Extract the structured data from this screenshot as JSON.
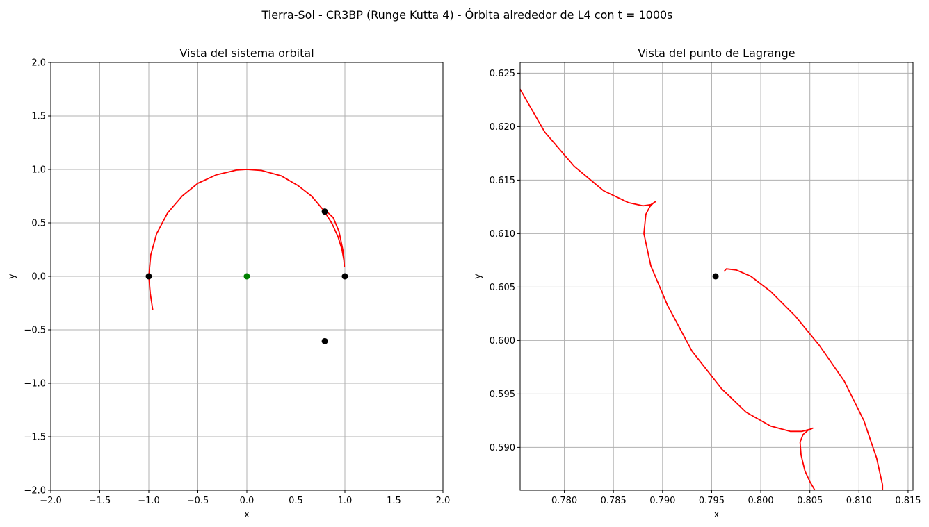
{
  "figure": {
    "suptitle": "Tierra-Sol - CR3BP (Runge Kutta 4) - Órbita alrededor de L4 con t = 1000s"
  },
  "colors": {
    "orbit": "#ff0000",
    "body": "#000000",
    "sun": "#008000",
    "grid": "#b0b0b0"
  },
  "chart_data": [
    {
      "type": "line",
      "title": "Vista del sistema orbital",
      "xlabel": "x",
      "ylabel": "y",
      "xlim": [
        -2.0,
        2.0
      ],
      "ylim": [
        -2.0,
        2.0
      ],
      "xticks": [
        -2.0,
        -1.5,
        -1.0,
        -0.5,
        0.0,
        0.5,
        1.0,
        1.5,
        2.0
      ],
      "yticks": [
        -2.0,
        -1.5,
        -1.0,
        -0.5,
        0.0,
        0.5,
        1.0,
        1.5,
        2.0
      ],
      "xtick_labels": [
        "−2.0",
        "−1.5",
        "−1.0",
        "−0.5",
        "0.0",
        "0.5",
        "1.0",
        "1.5",
        "2.0"
      ],
      "ytick_labels": [
        "−2.0",
        "−1.5",
        "−1.0",
        "−0.5",
        "0.0",
        "0.5",
        "1.0",
        "1.5",
        "2.0"
      ],
      "grid": true,
      "series": [
        {
          "kind": "line",
          "color": "#ff0000",
          "x": [
            -0.96,
            -0.985,
            -1.0,
            -0.98,
            -0.92,
            -0.81,
            -0.66,
            -0.5,
            -0.31,
            -0.1,
            0.0,
            0.15,
            0.35,
            0.52,
            0.66,
            0.79,
            0.87,
            0.93,
            0.97,
            0.99,
            0.995,
            0.985,
            0.94,
            0.88,
            0.81,
            0.79
          ],
          "y": [
            -0.31,
            -0.16,
            0.0,
            0.2,
            0.4,
            0.59,
            0.75,
            0.87,
            0.95,
            0.995,
            1.0,
            0.99,
            0.94,
            0.85,
            0.75,
            0.61,
            0.49,
            0.37,
            0.25,
            0.15,
            0.09,
            0.22,
            0.42,
            0.55,
            0.61,
            0.62
          ]
        },
        {
          "kind": "point",
          "color": "#000000",
          "x": [
            -1.0
          ],
          "y": [
            0.0
          ]
        },
        {
          "kind": "point",
          "color": "#000000",
          "x": [
            1.0
          ],
          "y": [
            0.0
          ]
        },
        {
          "kind": "point",
          "color": "#000000",
          "x": [
            0.795
          ],
          "y": [
            0.606
          ]
        },
        {
          "kind": "point",
          "color": "#000000",
          "x": [
            0.795
          ],
          "y": [
            -0.606
          ]
        },
        {
          "kind": "point",
          "color": "#008000",
          "x": [
            0.0
          ],
          "y": [
            0.0
          ]
        }
      ]
    },
    {
      "type": "line",
      "title": "Vista del punto de Lagrange",
      "xlabel": "x",
      "ylabel": "y",
      "xlim": [
        0.7755,
        0.8155
      ],
      "ylim": [
        0.586,
        0.626
      ],
      "xticks": [
        0.78,
        0.785,
        0.79,
        0.795,
        0.8,
        0.805,
        0.81,
        0.815
      ],
      "yticks": [
        0.59,
        0.595,
        0.6,
        0.605,
        0.61,
        0.615,
        0.62,
        0.625
      ],
      "xtick_labels": [
        "0.780",
        "0.785",
        "0.790",
        "0.795",
        "0.800",
        "0.805",
        "0.810",
        "0.815"
      ],
      "ytick_labels": [
        "0.590",
        "0.595",
        "0.600",
        "0.605",
        "0.610",
        "0.615",
        "0.620",
        "0.625"
      ],
      "grid": true,
      "series": [
        {
          "kind": "line",
          "color": "#ff0000",
          "x": [
            0.7755,
            0.778,
            0.781,
            0.784,
            0.7865,
            0.788,
            0.7888,
            0.7893,
            0.789,
            0.7887,
            0.7883,
            0.7881,
            0.7888,
            0.7905,
            0.793,
            0.796,
            0.7985,
            0.801,
            0.803,
            0.8042,
            0.805,
            0.8053,
            0.8048,
            0.8043,
            0.804,
            0.8041,
            0.8045,
            0.805,
            0.8055
          ],
          "y": [
            0.6235,
            0.6195,
            0.6163,
            0.614,
            0.6129,
            0.6126,
            0.6127,
            0.613,
            0.6128,
            0.6125,
            0.6118,
            0.61,
            0.607,
            0.6033,
            0.599,
            0.5955,
            0.5933,
            0.592,
            0.5915,
            0.5915,
            0.5917,
            0.5918,
            0.5916,
            0.5912,
            0.5905,
            0.5893,
            0.5878,
            0.5868,
            0.586
          ]
        },
        {
          "kind": "line",
          "color": "#ff0000",
          "x": [
            0.7963,
            0.7965,
            0.7975,
            0.799,
            0.801,
            0.8035,
            0.806,
            0.8085,
            0.8105,
            0.8118,
            0.8124,
            0.8124
          ],
          "y": [
            0.6065,
            0.6067,
            0.6066,
            0.606,
            0.6046,
            0.6023,
            0.5995,
            0.5962,
            0.5925,
            0.589,
            0.5865,
            0.586
          ]
        },
        {
          "kind": "point",
          "color": "#000000",
          "x": [
            0.7954
          ],
          "y": [
            0.606
          ]
        }
      ]
    }
  ]
}
